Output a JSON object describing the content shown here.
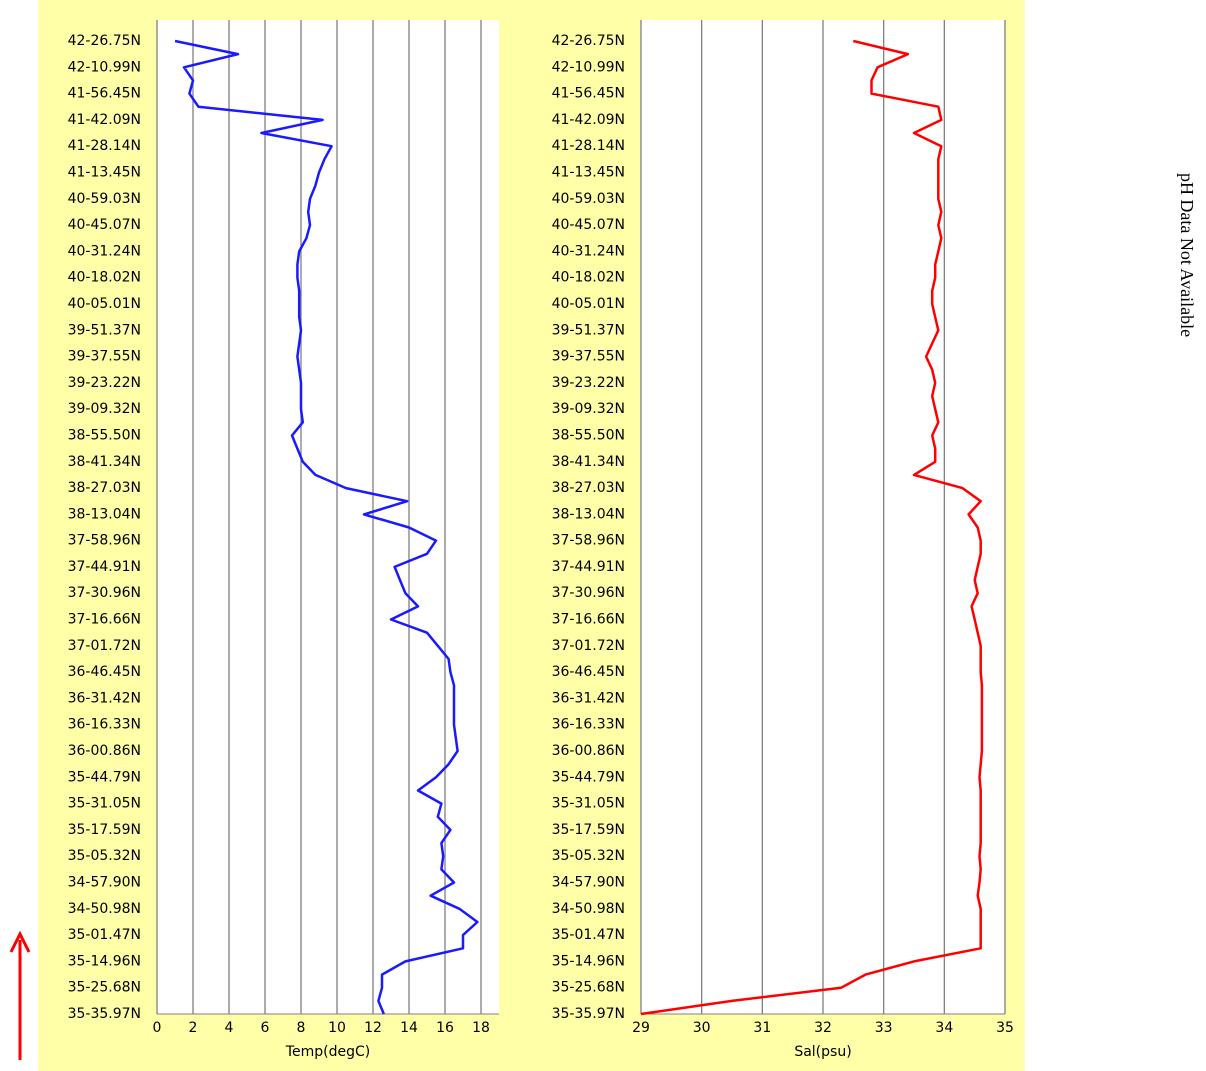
{
  "chart_data": [
    {
      "type": "line",
      "xlabel": "Temp(degC)",
      "color": "#1a1aff",
      "categories": [
        "42-26.75N",
        null,
        "42-10.99N",
        null,
        "41-56.45N",
        null,
        "41-42.09N",
        null,
        "41-28.14N",
        null,
        "41-13.45N",
        null,
        "40-59.03N",
        null,
        "40-45.07N",
        null,
        "40-31.24N",
        null,
        "40-18.02N",
        null,
        "40-05.01N",
        null,
        "39-51.37N",
        null,
        "39-37.55N",
        null,
        "39-23.22N",
        null,
        "39-09.32N",
        null,
        "38-55.50N",
        null,
        "38-41.34N",
        null,
        "38-27.03N",
        null,
        "38-13.04N",
        null,
        "37-58.96N",
        null,
        "37-44.91N",
        null,
        "37-30.96N",
        null,
        "37-16.66N",
        null,
        "37-01.72N",
        null,
        "36-46.45N",
        null,
        "36-31.42N",
        null,
        "36-16.33N",
        null,
        "36-00.86N",
        null,
        "35-44.79N",
        null,
        "35-31.05N",
        null,
        "35-17.59N",
        null,
        "35-05.32N",
        null,
        "34-57.90N",
        null,
        "34-50.98N",
        null,
        "35-01.47N",
        null,
        "35-14.96N",
        null,
        "35-25.68N",
        null,
        "35-35.97N"
      ],
      "values": [
        1.0,
        4.5,
        1.5,
        2.0,
        1.8,
        2.3,
        9.2,
        5.8,
        9.7,
        9.3,
        9.0,
        8.8,
        8.5,
        8.4,
        8.5,
        8.3,
        7.9,
        7.8,
        7.8,
        7.9,
        7.9,
        7.9,
        8.0,
        7.9,
        7.8,
        7.9,
        8.0,
        8.0,
        8.0,
        8.1,
        7.5,
        7.8,
        8.1,
        8.8,
        10.5,
        13.9,
        11.5,
        14.0,
        15.5,
        15.0,
        13.2,
        13.5,
        13.8,
        14.5,
        13.0,
        15.0,
        15.6,
        16.2,
        16.3,
        16.5,
        16.5,
        16.5,
        16.5,
        16.6,
        16.7,
        16.2,
        15.5,
        14.5,
        15.8,
        15.6,
        16.3,
        15.8,
        15.9,
        15.8,
        16.5,
        15.2,
        16.8,
        17.8,
        17.0,
        17.0,
        13.8,
        12.5,
        12.5,
        12.3,
        12.6
      ],
      "xlim": [
        0,
        19
      ],
      "xticks": [
        0,
        2,
        4,
        6,
        8,
        10,
        12,
        14,
        16,
        18
      ],
      "grid": true
    },
    {
      "type": "line",
      "xlabel": "Sal(psu)",
      "color": "#ff0000",
      "categories": [
        "42-26.75N",
        null,
        "42-10.99N",
        null,
        "41-56.45N",
        null,
        "41-42.09N",
        null,
        "41-28.14N",
        null,
        "41-13.45N",
        null,
        "40-59.03N",
        null,
        "40-45.07N",
        null,
        "40-31.24N",
        null,
        "40-18.02N",
        null,
        "40-05.01N",
        null,
        "39-51.37N",
        null,
        "39-37.55N",
        null,
        "39-23.22N",
        null,
        "39-09.32N",
        null,
        "38-55.50N",
        null,
        "38-41.34N",
        null,
        "38-27.03N",
        null,
        "38-13.04N",
        null,
        "37-58.96N",
        null,
        "37-44.91N",
        null,
        "37-30.96N",
        null,
        "37-16.66N",
        null,
        "37-01.72N",
        null,
        "36-46.45N",
        null,
        "36-31.42N",
        null,
        "36-16.33N",
        null,
        "36-00.86N",
        null,
        "35-44.79N",
        null,
        "35-31.05N",
        null,
        "35-17.59N",
        null,
        "35-05.32N",
        null,
        "34-57.90N",
        null,
        "34-50.98N",
        null,
        "35-01.47N",
        null,
        "35-14.96N",
        null,
        "35-25.68N",
        null,
        "35-35.97N"
      ],
      "values": [
        32.5,
        33.4,
        32.9,
        32.8,
        32.8,
        33.9,
        33.95,
        33.5,
        33.95,
        33.9,
        33.9,
        33.9,
        33.9,
        33.95,
        33.9,
        33.95,
        33.9,
        33.85,
        33.85,
        33.8,
        33.8,
        33.85,
        33.9,
        33.8,
        33.7,
        33.8,
        33.85,
        33.8,
        33.85,
        33.9,
        33.8,
        33.85,
        33.85,
        33.5,
        34.3,
        34.6,
        34.4,
        34.55,
        34.6,
        34.6,
        34.55,
        34.5,
        34.55,
        34.45,
        34.5,
        34.55,
        34.6,
        34.6,
        34.6,
        34.62,
        34.62,
        34.62,
        34.62,
        34.62,
        34.62,
        34.6,
        34.58,
        34.6,
        34.6,
        34.6,
        34.6,
        34.6,
        34.58,
        34.6,
        34.58,
        34.55,
        34.6,
        34.6,
        34.6,
        34.6,
        33.5,
        32.7,
        32.3,
        30.5,
        29.0
      ],
      "xlim": [
        29,
        35
      ],
      "xticks": [
        29,
        30,
        31,
        32,
        33,
        34,
        35
      ],
      "grid": true
    }
  ],
  "annotation": "pH Data Not Available"
}
